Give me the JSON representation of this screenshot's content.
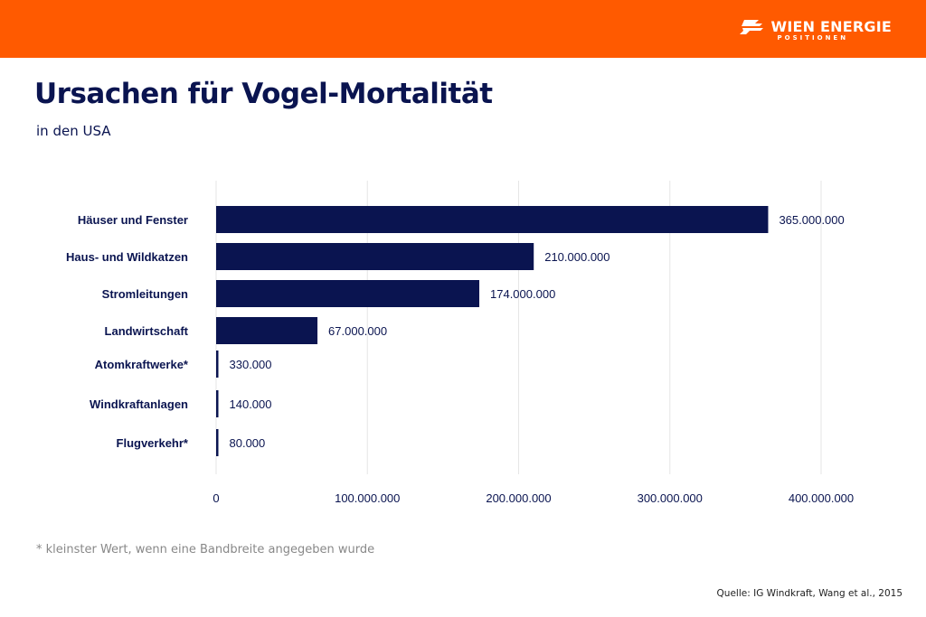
{
  "header": {
    "brand": "WIEN ENERGIE",
    "brand_sub": "POSITIONEN",
    "brand_color": "#ff5a00",
    "logo_icon": "wien-energie-logo-icon"
  },
  "chart_data": {
    "type": "bar",
    "orientation": "horizontal",
    "title": "Ursachen für Vogel-Mortalität",
    "subtitle": "in den USA",
    "categories": [
      "Häuser und Fenster",
      "Haus- und Wildkatzen",
      "Stromleitungen",
      "Landwirtschaft",
      "Atomkraftwerke*",
      "Windkraftanlagen",
      "Flugverkehr*"
    ],
    "values": [
      365000000,
      210000000,
      174000000,
      67000000,
      330000,
      140000,
      80000
    ],
    "value_labels": [
      "365.000.000",
      "210.000.000",
      "174.000.000",
      "67.000.000",
      "330.000",
      "140.000",
      "80.000"
    ],
    "xlim": [
      0,
      400000000
    ],
    "xticks": [
      0,
      100000000,
      200000000,
      300000000,
      400000000
    ],
    "xtick_labels": [
      "0",
      "100.000.000",
      "200.000.000",
      "300.000.000",
      "400.000.000"
    ],
    "grid": "vertical",
    "bar_color": "#0a1450",
    "xlabel": "",
    "ylabel": ""
  },
  "footnote": "* kleinster Wert, wenn eine Bandbreite angegeben wurde",
  "source": "Quelle: IG Windkraft, Wang et al., 2015"
}
